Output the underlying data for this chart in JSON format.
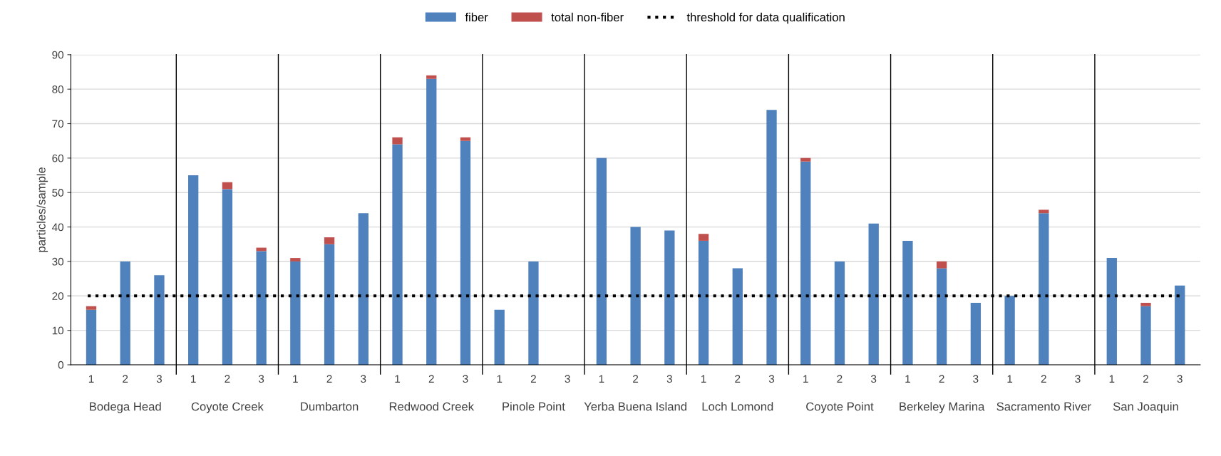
{
  "chart_data": {
    "type": "bar",
    "stacked": true,
    "ylabel": "particles/sample",
    "categories": [
      "1",
      "2",
      "3",
      "1",
      "2",
      "3",
      "1",
      "2",
      "3",
      "1",
      "2",
      "3",
      "1",
      "2",
      "3",
      "1",
      "2",
      "3",
      "1",
      "2",
      "3",
      "1",
      "2",
      "3",
      "1",
      "2",
      "3",
      "1",
      "2",
      "3",
      "1",
      "2",
      "3"
    ],
    "series": [
      {
        "name": "fiber",
        "color": "#4f81bd",
        "values": [
          16,
          30,
          26,
          55,
          51,
          33,
          30,
          35,
          44,
          64,
          83,
          65,
          16,
          30,
          null,
          60,
          40,
          39,
          36,
          28,
          74,
          59,
          30,
          41,
          36,
          28,
          18,
          20,
          44,
          null,
          31,
          17,
          23
        ]
      },
      {
        "name": "total non-fiber",
        "color": "#c0504d",
        "values": [
          1,
          0,
          0,
          0,
          2,
          1,
          1,
          2,
          0,
          2,
          1,
          1,
          0,
          0,
          null,
          0,
          0,
          0,
          2,
          0,
          0,
          1,
          0,
          0,
          0,
          2,
          0,
          0,
          1,
          null,
          0,
          1,
          0
        ]
      }
    ],
    "ref_lines": [
      {
        "axis": "y",
        "value": 20,
        "label": "threshold for data qualification",
        "color": "#000000",
        "line_style": "dotted"
      }
    ],
    "annotations": [
      "Bodega Head",
      "Coyote Creek",
      "Dumbarton",
      "Redwood Creek",
      "Pinole Point",
      "Yerba Buena Island",
      "Loch Lomond",
      "Coyote Point",
      "Berkeley Marina",
      "Sacramento River",
      "San Joaquin"
    ],
    "ylim": [
      0,
      90
    ],
    "yticks": [
      0,
      10,
      20,
      30,
      40,
      50,
      60,
      70,
      80,
      90
    ],
    "grid": "y",
    "legend": "top"
  }
}
